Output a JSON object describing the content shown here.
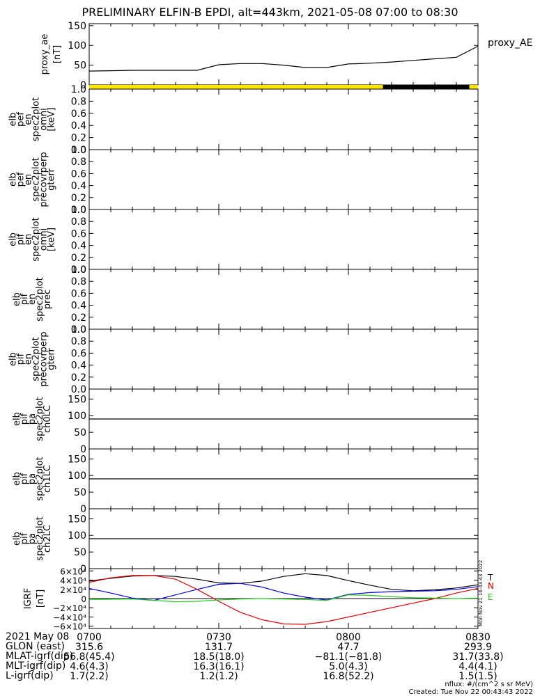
{
  "title": "PRELIMINARY ELFIN-B EPDI, alt=443km, 2021-05-08 07:00 to 08:30",
  "colors": {
    "ae_line": "#000000",
    "bar_yellow": "#ffe400",
    "bar_black": "#000000",
    "grf_x": "#000000",
    "grf_y": "#0000dd",
    "grf_z": "#dd0000",
    "grf_e": "#22cc22"
  },
  "panels": [
    {
      "label": [
        "proxy_ae",
        "[nT]"
      ],
      "ticks": [
        "0",
        "50",
        "100",
        "150"
      ]
    },
    {
      "label": [
        "elb",
        "pef",
        "en",
        "spec2plot",
        "omni",
        "[keV]"
      ],
      "ticks": [
        "0.0",
        "0.2",
        "0.4",
        "0.6",
        "0.8",
        "1.0"
      ]
    },
    {
      "label": [
        "elb",
        "pef",
        "en",
        "spec2plot",
        "precovrperp",
        "gterr"
      ],
      "ticks": [
        "0.0",
        "0.2",
        "0.4",
        "0.6",
        "0.8",
        "1.0"
      ]
    },
    {
      "label": [
        "elb",
        "pif",
        "en",
        "spec2plot",
        "omni",
        "[keV]"
      ],
      "ticks": [
        "0.0",
        "0.2",
        "0.4",
        "0.6",
        "0.8",
        "1.0"
      ]
    },
    {
      "label": [
        "elb",
        "pif",
        "en",
        "spec2plot",
        "prec"
      ],
      "ticks": [
        "0.0",
        "0.2",
        "0.4",
        "0.6",
        "0.8",
        "1.0"
      ]
    },
    {
      "label": [
        "elb",
        "pif",
        "en",
        "spec2plot",
        "precovrperp",
        "gterr"
      ],
      "ticks": [
        "0.0",
        "0.2",
        "0.4",
        "0.6",
        "0.8",
        "1.0"
      ]
    },
    {
      "label": [
        "elb",
        "pif",
        "pa",
        "spec2plot",
        "ch0LC"
      ],
      "ticks": [
        "0",
        "50",
        "100",
        "150"
      ]
    },
    {
      "label": [
        "elb",
        "pif",
        "pa",
        "spec2plot",
        "ch1LC"
      ],
      "ticks": [
        "0",
        "50",
        "100",
        "150"
      ]
    },
    {
      "label": [
        "elb",
        "pif",
        "pa",
        "spec2plot",
        "ch2LC"
      ],
      "ticks": [
        "0",
        "50",
        "100",
        "150"
      ]
    },
    {
      "label": [
        "IGRF",
        "[nT]"
      ],
      "ticks": [
        "−6×10⁴",
        "−4×10⁴",
        "−2×10⁴",
        "0",
        "2×10⁴",
        "4×10⁴",
        "6×10⁴"
      ]
    }
  ],
  "legend_ae": "proxy_AE",
  "grf_legend": [
    "T",
    "N",
    "E"
  ],
  "grf_rot_text": "Mon Nov 21 16:43:43 2022",
  "ephemeris": {
    "rows": [
      {
        "label": "2021 May 08",
        "values": [
          "0700",
          "0730",
          "0800",
          "0830"
        ]
      },
      {
        "label": "GLON (east)",
        "values": [
          "315.6",
          "131.7",
          "47.7",
          "293.9"
        ]
      },
      {
        "label": "MLAT-igrf(dip)",
        "values": [
          "56.8(45.4)",
          "18.5(18.0)",
          "−81.1(−81.8)",
          "31.7(33.8)"
        ]
      },
      {
        "label": "MLT-igrf(dip)",
        "values": [
          "4.6(4.3)",
          "16.3(16.1)",
          "5.0(4.3)",
          "4.4(4.1)"
        ]
      },
      {
        "label": "L-igrf(dip)",
        "values": [
          "1.7(2.2)",
          "1.2(1.2)",
          "16.8(52.2)",
          "1.5(1.5)"
        ]
      }
    ]
  },
  "footer": {
    "units": "nflux: #/(cm^2 s sr MeV)",
    "created": "Created: Tue Nov 22 00:43:43 2022"
  },
  "chart_data": [
    {
      "type": "line",
      "xlabel": "",
      "ylabel": "proxy_ae [nT]",
      "ylim": [
        0,
        155
      ],
      "x": [
        "07:00",
        "07:05",
        "07:10",
        "07:15",
        "07:20",
        "07:25",
        "07:30",
        "07:35",
        "07:40",
        "07:45",
        "07:50",
        "07:55",
        "08:00",
        "08:05",
        "08:10",
        "08:15",
        "08:20",
        "08:25",
        "08:30"
      ],
      "series": [
        {
          "name": "proxy_AE",
          "values": [
            35,
            36,
            37,
            37,
            37,
            37,
            51,
            54,
            54,
            50,
            44,
            44,
            53,
            55,
            58,
            62,
            66,
            70,
            98
          ]
        }
      ],
      "grid": false,
      "legend": "right"
    },
    {
      "type": "bar",
      "name": "status bar",
      "segments": [
        {
          "from": "07:00",
          "to": "08:08",
          "color": "yellow"
        },
        {
          "from": "08:08",
          "to": "08:28",
          "color": "black"
        },
        {
          "from": "08:28",
          "to": "08:30",
          "color": "yellow"
        }
      ]
    },
    {
      "type": "line",
      "ylabel": "elb pef en spec2plot omni [keV]",
      "ylim": [
        0,
        1
      ],
      "series": []
    },
    {
      "type": "line",
      "ylabel": "elb pef en spec2plot precovrperp gterr",
      "ylim": [
        0,
        1
      ],
      "series": []
    },
    {
      "type": "line",
      "ylabel": "elb pif en spec2plot omni [keV]",
      "ylim": [
        0,
        1
      ],
      "series": []
    },
    {
      "type": "line",
      "ylabel": "elb pif en spec2plot prec",
      "ylim": [
        0,
        1
      ],
      "series": []
    },
    {
      "type": "line",
      "ylabel": "elb pif en spec2plot precovrperp gterr",
      "ylim": [
        0,
        1
      ],
      "series": []
    },
    {
      "type": "line",
      "ylabel": "elb pif pa spec2plot ch0LC",
      "ylim": [
        0,
        180
      ],
      "hline": 90,
      "series": []
    },
    {
      "type": "line",
      "ylabel": "elb pif pa spec2plot ch1LC",
      "ylim": [
        0,
        180
      ],
      "hline": 90,
      "series": []
    },
    {
      "type": "line",
      "ylabel": "elb pif pa spec2plot ch2LC",
      "ylim": [
        0,
        180
      ],
      "hline": 90,
      "series": []
    },
    {
      "type": "line",
      "ylabel": "IGRF [nT]",
      "ylim": [
        -65000,
        65000
      ],
      "hline": 0,
      "x": [
        "07:00",
        "07:05",
        "07:10",
        "07:15",
        "07:20",
        "07:25",
        "07:30",
        "07:35",
        "07:40",
        "07:45",
        "07:50",
        "07:55",
        "08:00",
        "08:05",
        "08:10",
        "08:15",
        "08:20",
        "08:25",
        "08:30"
      ],
      "series": [
        {
          "name": "black",
          "values": [
            38000,
            44000,
            49000,
            50000,
            48000,
            42000,
            34000,
            33000,
            38000,
            48000,
            54000,
            50000,
            39000,
            29000,
            20000,
            17000,
            19000,
            23000,
            30000
          ]
        },
        {
          "name": "blue",
          "values": [
            22000,
            12000,
            1000,
            -4000,
            8000,
            20000,
            31000,
            33000,
            25000,
            12000,
            3000,
            -3000,
            9000,
            13000,
            15000,
            16000,
            17000,
            20000,
            26000
          ]
        },
        {
          "name": "red",
          "values": [
            35000,
            45000,
            50000,
            50000,
            42000,
            20000,
            -6000,
            -30000,
            -46000,
            -55000,
            -56000,
            -50000,
            -40000,
            -30000,
            -20000,
            -10000,
            0,
            12000,
            22000
          ]
        },
        {
          "name": "green",
          "values": [
            -2000,
            -1500,
            -1000,
            -4000,
            -7000,
            -6000,
            -3000,
            -1000,
            0,
            -1000,
            -2000,
            -4000,
            8000,
            7000,
            4000,
            2000,
            1000,
            0,
            1000
          ]
        }
      ]
    }
  ]
}
